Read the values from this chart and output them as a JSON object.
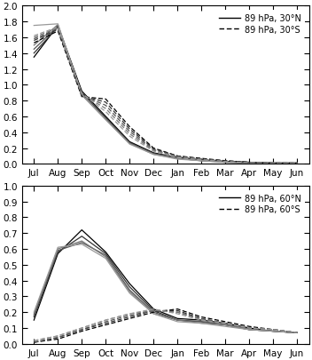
{
  "months": [
    "Jul",
    "Aug",
    "Sep",
    "Oct",
    "Nov",
    "Dec",
    "Jan",
    "Feb",
    "Mar",
    "Apr",
    "May",
    "Jun"
  ],
  "upper_north_cycles": [
    [
      1.35,
      1.75,
      0.92,
      0.6,
      0.28,
      0.14,
      0.08,
      0.05,
      0.03,
      0.02,
      0.01,
      0.01
    ],
    [
      1.4,
      1.73,
      0.9,
      0.58,
      0.27,
      0.13,
      0.07,
      0.05,
      0.03,
      0.02,
      0.01,
      0.01
    ],
    [
      1.45,
      1.74,
      0.88,
      0.57,
      0.26,
      0.13,
      0.07,
      0.04,
      0.03,
      0.01,
      0.01,
      0.01
    ],
    [
      1.5,
      1.76,
      0.87,
      0.56,
      0.26,
      0.12,
      0.07,
      0.04,
      0.02,
      0.01,
      0.01,
      0.01
    ],
    [
      1.75,
      1.77,
      0.88,
      0.56,
      0.25,
      0.12,
      0.06,
      0.04,
      0.02,
      0.01,
      0.01,
      0.01
    ]
  ],
  "upper_south_cycles": [
    [
      1.53,
      1.68,
      0.85,
      0.82,
      0.47,
      0.2,
      0.1,
      0.07,
      0.04,
      0.02,
      0.01,
      0.01
    ],
    [
      1.56,
      1.7,
      0.86,
      0.78,
      0.44,
      0.19,
      0.1,
      0.06,
      0.04,
      0.02,
      0.01,
      0.01
    ],
    [
      1.58,
      1.71,
      0.87,
      0.74,
      0.41,
      0.18,
      0.09,
      0.06,
      0.03,
      0.02,
      0.01,
      0.01
    ],
    [
      1.6,
      1.72,
      0.88,
      0.7,
      0.38,
      0.17,
      0.09,
      0.06,
      0.03,
      0.01,
      0.01,
      0.01
    ],
    [
      1.62,
      1.73,
      0.89,
      0.66,
      0.35,
      0.16,
      0.08,
      0.05,
      0.03,
      0.01,
      0.01,
      0.01
    ]
  ],
  "lower_north_cycles": [
    [
      0.15,
      0.57,
      0.72,
      0.58,
      0.38,
      0.22,
      0.16,
      0.15,
      0.13,
      0.1,
      0.08,
      0.07
    ],
    [
      0.17,
      0.58,
      0.68,
      0.57,
      0.36,
      0.21,
      0.15,
      0.14,
      0.12,
      0.09,
      0.08,
      0.07
    ],
    [
      0.18,
      0.59,
      0.64,
      0.56,
      0.34,
      0.2,
      0.15,
      0.14,
      0.12,
      0.09,
      0.08,
      0.07
    ],
    [
      0.19,
      0.6,
      0.65,
      0.55,
      0.33,
      0.19,
      0.15,
      0.13,
      0.12,
      0.09,
      0.08,
      0.07
    ],
    [
      0.2,
      0.61,
      0.63,
      0.54,
      0.32,
      0.19,
      0.14,
      0.13,
      0.11,
      0.09,
      0.08,
      0.07
    ]
  ],
  "lower_south_cycles": [
    [
      0.01,
      0.03,
      0.08,
      0.12,
      0.16,
      0.2,
      0.22,
      0.17,
      0.14,
      0.11,
      0.09,
      0.07
    ],
    [
      0.01,
      0.04,
      0.09,
      0.13,
      0.17,
      0.21,
      0.21,
      0.16,
      0.13,
      0.1,
      0.09,
      0.07
    ],
    [
      0.01,
      0.04,
      0.09,
      0.14,
      0.18,
      0.21,
      0.2,
      0.16,
      0.13,
      0.1,
      0.09,
      0.07
    ],
    [
      0.02,
      0.05,
      0.1,
      0.15,
      0.19,
      0.21,
      0.2,
      0.15,
      0.13,
      0.1,
      0.09,
      0.07
    ],
    [
      0.02,
      0.05,
      0.1,
      0.15,
      0.19,
      0.22,
      0.19,
      0.15,
      0.13,
      0.1,
      0.09,
      0.07
    ]
  ],
  "upper_ylim": [
    0.0,
    2.0
  ],
  "upper_yticks": [
    0.0,
    0.2,
    0.4,
    0.6,
    0.8,
    1.0,
    1.2,
    1.4,
    1.6,
    1.8,
    2.0
  ],
  "lower_ylim": [
    0.0,
    1.0
  ],
  "lower_yticks": [
    0.0,
    0.1,
    0.2,
    0.3,
    0.4,
    0.5,
    0.6,
    0.7,
    0.8,
    0.9,
    1.0
  ],
  "line_color": "#000000",
  "legend1_solid": "89 hPa, 30°N",
  "legend1_dashed": "89 hPa, 30°S",
  "legend2_solid": "89 hPa, 60°N",
  "legend2_dashed": "89 hPa, 60°S",
  "bg_color": "#ffffff"
}
